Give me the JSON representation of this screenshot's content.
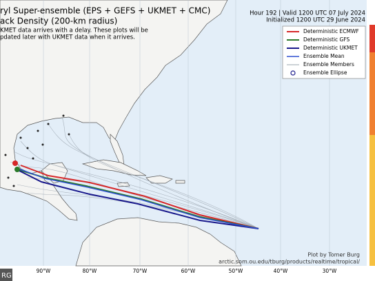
{
  "header": {
    "title_line1": "ryl Super-ensemble (EPS + GEFS + UKMET + CMC)",
    "title_line2": "ack Density (200-km radius)",
    "notice_line1": "KMET data arrives with a delay. These plots will be",
    "notice_line2": "pdated later with UKMET data when it arrives.",
    "valid": "Hour 192 | Valid 1200 UTC 07 July 2024",
    "initialized": "Initialized 1200 UTC 29 June 2024"
  },
  "legend": {
    "items": [
      "Deterministic ECMWF",
      "Deterministic GFS",
      "Deterministic UKMET",
      "Ensemble Mean",
      "Ensemble Members",
      "Ensemble Ellipse"
    ]
  },
  "axis": {
    "x_labels": [
      "90°W",
      "80°W",
      "70°W",
      "60°W",
      "50°W",
      "40°W",
      "30°W"
    ]
  },
  "credit": {
    "author": "Plot by Tomer Burg",
    "url": "arctic.som.ou.edu/tburg/products/realtime/tropical/"
  },
  "watermark": "RG"
}
